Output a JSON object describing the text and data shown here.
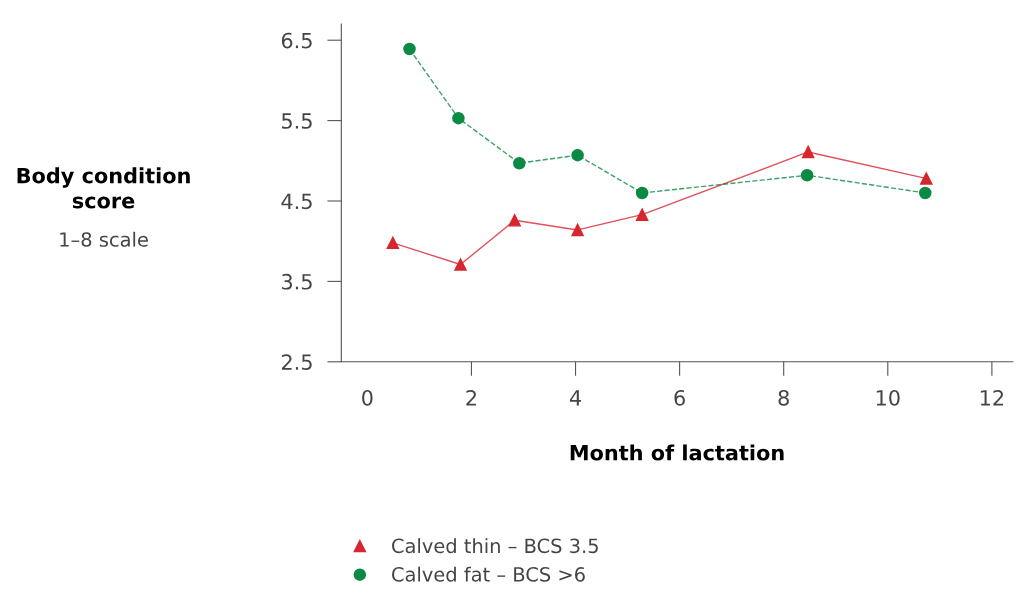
{
  "chart_data": {
    "type": "line",
    "xlabel": "Month of lactation",
    "annotations": [
      "Body condition score",
      "1–8 scale"
    ],
    "xlim": [
      -0.5,
      12.4
    ],
    "xticks": [
      0,
      2,
      4,
      6,
      8,
      10,
      12
    ],
    "ylim": [
      2.5,
      6.7
    ],
    "yticks": [
      2.5,
      3.5,
      4.5,
      5.5,
      6.5
    ],
    "grid": false,
    "legend": "bottom",
    "series": [
      {
        "name": "Calved thin – BCS 3.5",
        "color": "#d7262f",
        "marker": "triangle",
        "line_style": "solid",
        "x": [
          0.49,
          1.79,
          2.83,
          4.04,
          5.28,
          8.47,
          10.74
        ],
        "values": [
          3.98,
          3.71,
          4.26,
          4.14,
          4.33,
          5.11,
          4.78
        ]
      },
      {
        "name": "Calved fat – BCS >6",
        "color": "#0b8a43",
        "marker": "circle",
        "line_style": "dashed",
        "x": [
          0.81,
          1.75,
          2.92,
          4.04,
          5.28,
          8.45,
          10.72
        ],
        "values": [
          6.39,
          5.53,
          4.97,
          5.07,
          4.6,
          4.82,
          4.6
        ]
      }
    ]
  }
}
